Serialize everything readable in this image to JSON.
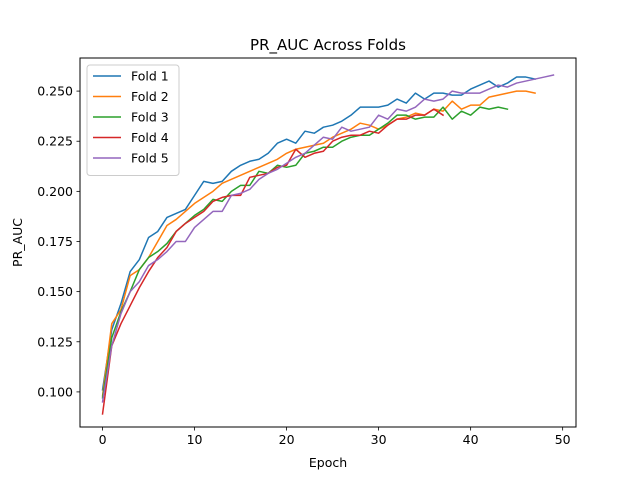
{
  "chart_data": {
    "type": "line",
    "title": "PR_AUC Across Folds",
    "xlabel": "Epoch",
    "ylabel": "PR_AUC",
    "xlim": [
      -2.45,
      51.45
    ],
    "ylim": [
      0.0825,
      0.2665
    ],
    "xticks": [
      0,
      10,
      20,
      30,
      40,
      50
    ],
    "yticks": [
      0.1,
      0.125,
      0.15,
      0.175,
      0.2,
      0.225,
      0.25
    ],
    "ytick_labels": [
      "0.100",
      "0.125",
      "0.150",
      "0.175",
      "0.200",
      "0.225",
      "0.250"
    ],
    "grid": false,
    "legend_position": "upper-left",
    "series": [
      {
        "name": "Fold 1",
        "color": "#1f77b4",
        "values": [
          0.101,
          0.131,
          0.144,
          0.16,
          0.166,
          0.177,
          0.18,
          0.187,
          0.189,
          0.191,
          0.198,
          0.205,
          0.204,
          0.205,
          0.21,
          0.213,
          0.215,
          0.216,
          0.219,
          0.224,
          0.226,
          0.224,
          0.23,
          0.229,
          0.232,
          0.233,
          0.235,
          0.238,
          0.242,
          0.242,
          0.242,
          0.243,
          0.246,
          0.244,
          0.249,
          0.246,
          0.249,
          0.249,
          0.248,
          0.248,
          0.251,
          0.253,
          0.255,
          0.252,
          0.254,
          0.257,
          0.257,
          0.256
        ]
      },
      {
        "name": "Fold 2",
        "color": "#ff7f0e",
        "values": [
          0.098,
          0.134,
          0.141,
          0.158,
          0.161,
          0.167,
          0.175,
          0.183,
          0.186,
          0.19,
          0.194,
          0.197,
          0.2,
          0.204,
          0.206,
          0.208,
          0.21,
          0.212,
          0.214,
          0.216,
          0.219,
          0.221,
          0.222,
          0.223,
          0.224,
          0.227,
          0.229,
          0.231,
          0.234,
          0.233,
          0.231,
          0.233,
          0.236,
          0.237,
          0.239,
          0.238,
          0.241,
          0.24,
          0.245,
          0.241,
          0.243,
          0.243,
          0.247,
          0.248,
          0.249,
          0.25,
          0.25,
          0.249
        ]
      },
      {
        "name": "Fold 3",
        "color": "#2ca02c",
        "values": [
          0.097,
          0.127,
          0.14,
          0.15,
          0.161,
          0.167,
          0.17,
          0.174,
          0.18,
          0.184,
          0.188,
          0.191,
          0.196,
          0.195,
          0.2,
          0.203,
          0.203,
          0.21,
          0.209,
          0.213,
          0.212,
          0.213,
          0.219,
          0.22,
          0.222,
          0.222,
          0.225,
          0.227,
          0.228,
          0.228,
          0.231,
          0.234,
          0.238,
          0.238,
          0.236,
          0.237,
          0.237,
          0.242,
          0.236,
          0.24,
          0.238,
          0.242,
          0.241,
          0.242,
          0.241
        ]
      },
      {
        "name": "Fold 4",
        "color": "#d62728",
        "values": [
          0.089,
          0.123,
          0.134,
          0.143,
          0.152,
          0.16,
          0.167,
          0.172,
          0.18,
          0.184,
          0.187,
          0.19,
          0.195,
          0.197,
          0.198,
          0.198,
          0.207,
          0.208,
          0.209,
          0.212,
          0.213,
          0.221,
          0.217,
          0.219,
          0.22,
          0.225,
          0.227,
          0.228,
          0.228,
          0.23,
          0.229,
          0.233,
          0.236,
          0.236,
          0.238,
          0.238,
          0.241,
          0.238
        ]
      },
      {
        "name": "Fold 5",
        "color": "#9467bd",
        "values": [
          0.095,
          0.123,
          0.139,
          0.15,
          0.155,
          0.163,
          0.166,
          0.17,
          0.175,
          0.175,
          0.182,
          0.186,
          0.19,
          0.19,
          0.198,
          0.199,
          0.201,
          0.206,
          0.209,
          0.211,
          0.214,
          0.217,
          0.219,
          0.223,
          0.227,
          0.226,
          0.232,
          0.23,
          0.231,
          0.232,
          0.238,
          0.236,
          0.241,
          0.24,
          0.242,
          0.246,
          0.245,
          0.246,
          0.25,
          0.249,
          0.249,
          0.249,
          0.251,
          0.253,
          0.252,
          0.254,
          0.255,
          0.256,
          0.257,
          0.258
        ]
      }
    ]
  }
}
